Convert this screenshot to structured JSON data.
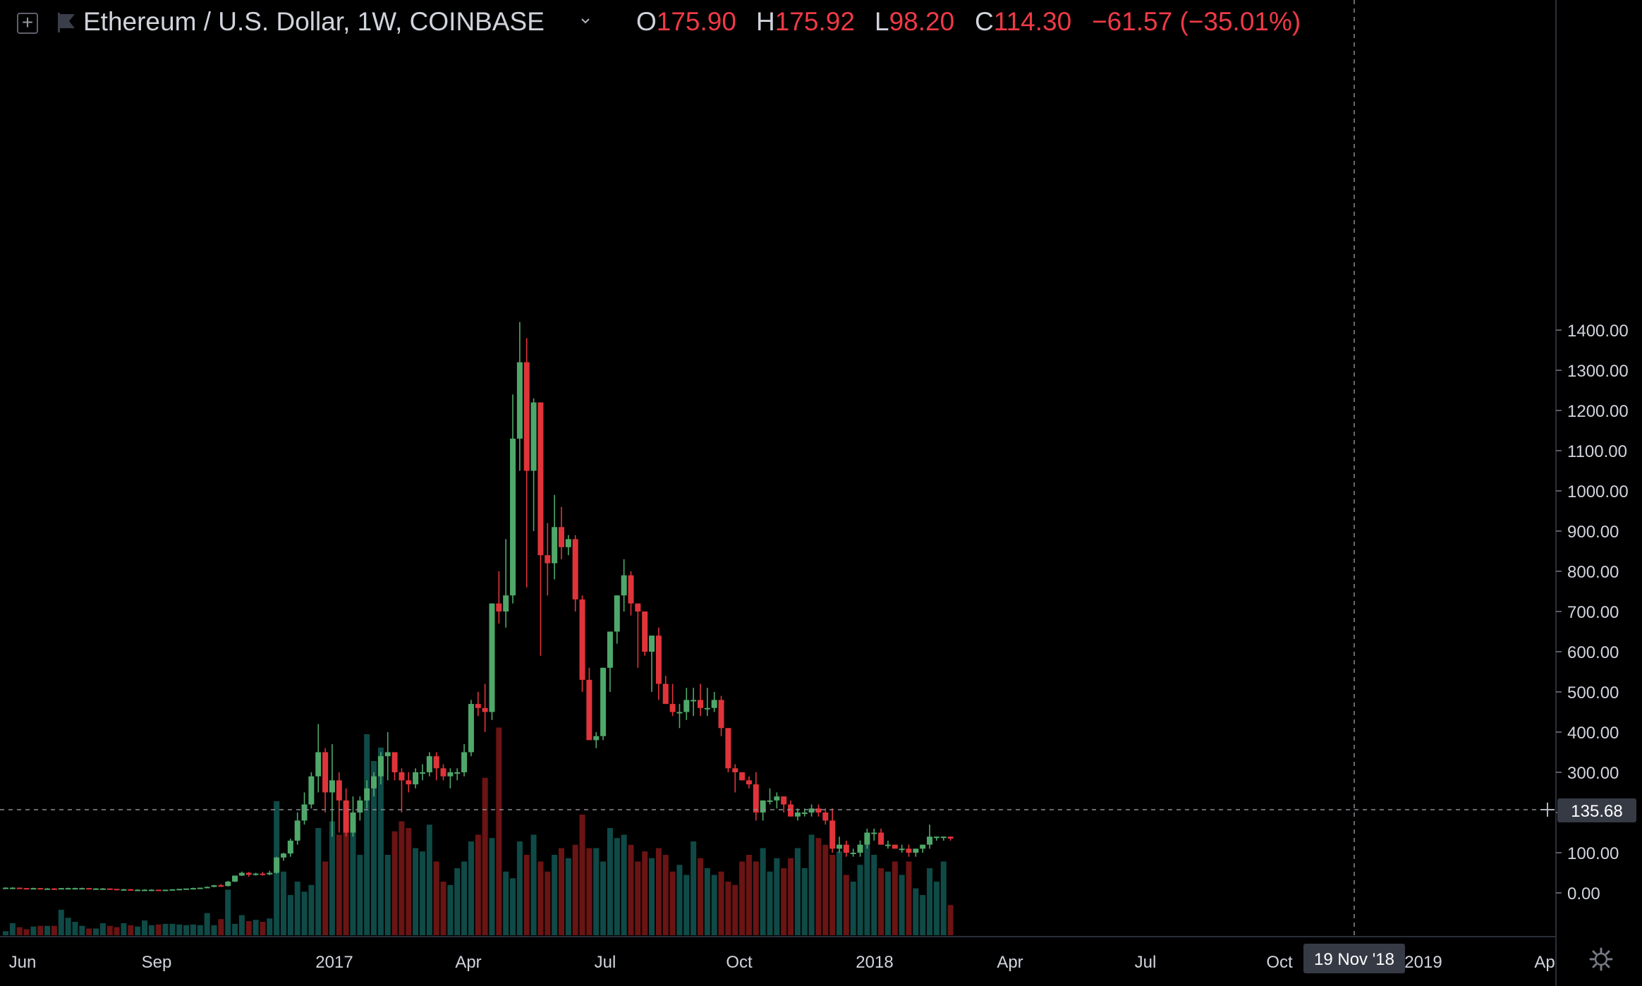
{
  "header": {
    "symbol": "Ethereum / U.S. Dollar, 1W, COINBASE",
    "o_label": "O",
    "o_value": "175.90",
    "h_label": "H",
    "h_value": "175.92",
    "l_label": "L",
    "l_value": "98.20",
    "c_label": "C",
    "c_value": "114.30",
    "change": "−61.57 (−35.01%)"
  },
  "crosshair": {
    "price_label": "135.68",
    "date_label": "19 Nov '18"
  },
  "colors": {
    "up": "#4fa86a",
    "down": "#e0343b",
    "vol_up": "#0f4a47",
    "vol_down": "#6a1414",
    "grid_text": "#d1d4dc",
    "header_value": "#ef3a46"
  },
  "icons": {
    "add": "plus-square-icon",
    "flag": "flag-icon",
    "dropdown": "chevron-down-icon",
    "settings": "gear-icon"
  },
  "chart_data": {
    "type": "candlestick",
    "title": "Ethereum / U.S. Dollar, 1W, COINBASE",
    "y_axis_ticks": [
      1400,
      1300,
      1200,
      1100,
      1000,
      900,
      800,
      700,
      600,
      500,
      400,
      300,
      200,
      100,
      0
    ],
    "y_tick_labels": [
      "1400.00",
      "1300.00",
      "1200.00",
      "1100.00",
      "1000.00",
      "900.00",
      "800.00",
      "700.00",
      "600.00",
      "500.00",
      "400.00",
      "300.00",
      "200.00",
      "100.00",
      "0.00"
    ],
    "x_tick_labels": [
      "Jun",
      "Sep",
      "2017",
      "Apr",
      "Jul",
      "Oct",
      "2018",
      "Apr",
      "Jul",
      "Oct",
      "2019",
      "Ap"
    ],
    "ylim": [
      0,
      1420
    ],
    "grid": false,
    "series": [
      {
        "candles": [
          [
            13,
            14,
            12,
            13
          ],
          [
            13,
            14,
            12,
            13
          ],
          [
            13,
            13,
            11,
            12
          ],
          [
            12,
            12,
            10,
            11
          ],
          [
            11,
            13,
            10,
            12
          ],
          [
            12,
            12,
            10,
            11
          ],
          [
            11,
            12,
            10,
            11
          ],
          [
            11,
            12,
            9,
            10
          ],
          [
            10,
            12,
            10,
            12
          ],
          [
            12,
            13,
            11,
            12
          ],
          [
            12,
            13,
            11,
            12
          ],
          [
            12,
            13,
            11,
            12
          ],
          [
            12,
            12,
            11,
            11
          ],
          [
            11,
            12,
            10,
            11
          ],
          [
            11,
            12,
            10,
            11
          ],
          [
            11,
            11,
            9,
            10
          ],
          [
            10,
            10,
            8,
            9
          ],
          [
            9,
            10,
            8,
            9
          ],
          [
            9,
            10,
            8,
            8
          ],
          [
            8,
            9,
            7,
            8
          ],
          [
            8,
            9,
            7,
            8
          ],
          [
            8,
            9,
            7,
            8
          ],
          [
            8,
            8,
            7,
            7
          ],
          [
            7,
            8,
            7,
            8
          ],
          [
            8,
            9,
            7,
            9
          ],
          [
            9,
            10,
            8,
            10
          ],
          [
            10,
            11,
            9,
            11
          ],
          [
            11,
            13,
            10,
            12
          ],
          [
            12,
            13,
            11,
            13
          ],
          [
            13,
            16,
            12,
            15
          ],
          [
            15,
            20,
            14,
            19
          ],
          [
            19,
            22,
            15,
            17
          ],
          [
            17,
            30,
            16,
            28
          ],
          [
            28,
            43,
            27,
            43
          ],
          [
            43,
            53,
            42,
            50
          ],
          [
            50,
            52,
            40,
            45
          ],
          [
            45,
            50,
            43,
            48
          ],
          [
            48,
            52,
            43,
            46
          ],
          [
            46,
            55,
            44,
            50
          ],
          [
            50,
            90,
            48,
            88
          ],
          [
            88,
            100,
            80,
            98
          ],
          [
            98,
            135,
            90,
            130
          ],
          [
            130,
            200,
            120,
            180
          ],
          [
            180,
            250,
            170,
            220
          ],
          [
            220,
            300,
            210,
            290
          ],
          [
            290,
            420,
            250,
            350
          ],
          [
            350,
            360,
            200,
            250
          ],
          [
            250,
            370,
            140,
            280
          ],
          [
            280,
            300,
            150,
            230
          ],
          [
            230,
            260,
            140,
            150
          ],
          [
            150,
            240,
            140,
            200
          ],
          [
            200,
            240,
            180,
            230
          ],
          [
            230,
            280,
            210,
            260
          ],
          [
            260,
            300,
            240,
            290
          ],
          [
            290,
            350,
            270,
            340
          ],
          [
            340,
            400,
            280,
            350
          ],
          [
            350,
            350,
            280,
            300
          ],
          [
            300,
            310,
            200,
            280
          ],
          [
            280,
            300,
            250,
            270
          ],
          [
            270,
            310,
            260,
            300
          ],
          [
            300,
            320,
            280,
            300
          ],
          [
            300,
            350,
            290,
            340
          ],
          [
            340,
            350,
            280,
            310
          ],
          [
            310,
            320,
            280,
            290
          ],
          [
            290,
            310,
            260,
            300
          ],
          [
            300,
            310,
            280,
            300
          ],
          [
            300,
            370,
            290,
            350
          ],
          [
            350,
            480,
            340,
            470
          ],
          [
            470,
            500,
            440,
            460
          ],
          [
            460,
            520,
            400,
            450
          ],
          [
            450,
            720,
            430,
            720
          ],
          [
            720,
            800,
            670,
            700
          ],
          [
            700,
            880,
            660,
            740
          ],
          [
            740,
            1240,
            720,
            1130
          ],
          [
            1130,
            1420,
            1050,
            1320
          ],
          [
            1320,
            1380,
            760,
            1050
          ],
          [
            1050,
            1230,
            900,
            1220
          ],
          [
            1220,
            1220,
            590,
            840
          ],
          [
            840,
            920,
            740,
            820
          ],
          [
            820,
            990,
            780,
            910
          ],
          [
            910,
            960,
            830,
            860
          ],
          [
            860,
            890,
            840,
            880
          ],
          [
            880,
            890,
            700,
            730
          ],
          [
            730,
            740,
            500,
            530
          ],
          [
            530,
            560,
            390,
            380
          ],
          [
            380,
            400,
            360,
            390
          ],
          [
            390,
            560,
            380,
            560
          ],
          [
            560,
            650,
            500,
            650
          ],
          [
            650,
            740,
            620,
            740
          ],
          [
            740,
            830,
            700,
            790
          ],
          [
            790,
            800,
            690,
            720
          ],
          [
            720,
            710,
            560,
            700
          ],
          [
            700,
            690,
            590,
            600
          ],
          [
            600,
            640,
            500,
            640
          ],
          [
            640,
            660,
            480,
            520
          ],
          [
            520,
            540,
            470,
            470
          ],
          [
            470,
            520,
            440,
            450
          ],
          [
            450,
            470,
            410,
            450
          ],
          [
            450,
            510,
            430,
            480
          ],
          [
            480,
            510,
            440,
            480
          ],
          [
            480,
            520,
            440,
            460
          ],
          [
            460,
            510,
            440,
            460
          ],
          [
            460,
            500,
            450,
            480
          ],
          [
            480,
            490,
            390,
            410
          ],
          [
            410,
            410,
            300,
            310
          ],
          [
            310,
            320,
            250,
            300
          ],
          [
            300,
            300,
            280,
            280
          ],
          [
            280,
            290,
            260,
            270
          ],
          [
            270,
            300,
            180,
            200
          ],
          [
            200,
            230,
            180,
            230
          ],
          [
            230,
            260,
            220,
            230
          ],
          [
            230,
            250,
            210,
            240
          ],
          [
            240,
            240,
            200,
            220
          ],
          [
            220,
            230,
            190,
            190
          ],
          [
            190,
            210,
            180,
            200
          ],
          [
            200,
            210,
            190,
            200
          ],
          [
            200,
            220,
            190,
            210
          ],
          [
            210,
            220,
            190,
            200
          ],
          [
            200,
            210,
            170,
            180
          ],
          [
            180,
            210,
            100,
            110
          ],
          [
            110,
            140,
            100,
            120
          ],
          [
            120,
            130,
            90,
            100
          ],
          [
            100,
            110,
            90,
            100
          ],
          [
            100,
            130,
            90,
            120
          ],
          [
            120,
            160,
            110,
            150
          ],
          [
            150,
            160,
            130,
            150
          ],
          [
            150,
            160,
            120,
            120
          ],
          [
            120,
            130,
            110,
            120
          ],
          [
            120,
            120,
            110,
            110
          ],
          [
            110,
            120,
            100,
            110
          ],
          [
            110,
            120,
            90,
            100
          ],
          [
            100,
            110,
            90,
            110
          ],
          [
            110,
            120,
            100,
            120
          ],
          [
            120,
            170,
            110,
            140
          ],
          [
            140,
            140,
            130,
            140
          ],
          [
            140,
            140,
            130,
            140
          ],
          [
            140,
            140,
            130,
            135
          ]
        ],
        "volume_up_idx_note": "volume bars colored by candle direction",
        "volumes": [
          6,
          18,
          12,
          9,
          13,
          14,
          14,
          14,
          38,
          26,
          20,
          14,
          10,
          10,
          18,
          14,
          12,
          18,
          15,
          13,
          22,
          15,
          16,
          17,
          17,
          16,
          15,
          16,
          15,
          33,
          15,
          24,
          68,
          17,
          30,
          21,
          23,
          20,
          25,
          200,
          95,
          60,
          80,
          65,
          75,
          160,
          110,
          170,
          150,
          180,
          160,
          120,
          300,
          260,
          280,
          120,
          155,
          170,
          160,
          130,
          125,
          165,
          110,
          80,
          75,
          100,
          110,
          140,
          150,
          235,
          145,
          310,
          95,
          85,
          140,
          120,
          150,
          110,
          95,
          120,
          130,
          115,
          135,
          180,
          130,
          130,
          110,
          160,
          145,
          150,
          135,
          110,
          125,
          115,
          130,
          120,
          95,
          105,
          90,
          140,
          115,
          100,
          90,
          95,
          80,
          75,
          110,
          120,
          110,
          130,
          95,
          115,
          100,
          115,
          130,
          100,
          150,
          145,
          135,
          120,
          125,
          90,
          80,
          105,
          135,
          120,
          100,
          95,
          110,
          90,
          110,
          70,
          60,
          100,
          80,
          110,
          45
        ]
      }
    ]
  }
}
